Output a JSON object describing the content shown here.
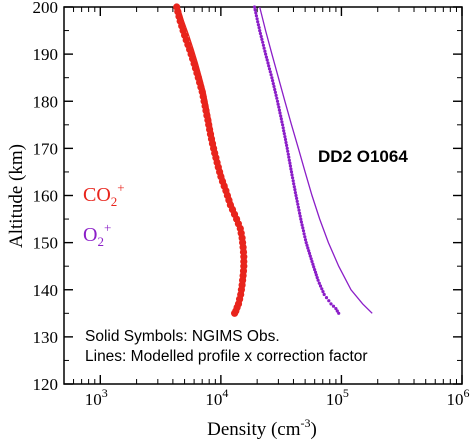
{
  "chart_data": {
    "type": "scatter",
    "x_scale": "log",
    "xlim": [
      500,
      1000000
    ],
    "ylim": [
      120,
      200
    ],
    "xlabel": "Density (cm",
    "xlabel_exp": "-3",
    "xlabel_close": ")",
    "ylabel": "Altitude (km)",
    "x_ticks": [
      {
        "value": 1000,
        "base": "10",
        "exp": "3"
      },
      {
        "value": 10000,
        "base": "10",
        "exp": "4"
      },
      {
        "value": 100000,
        "base": "10",
        "exp": "5"
      },
      {
        "value": 1000000,
        "base": "10",
        "exp": "6"
      }
    ],
    "y_ticks": [
      120,
      130,
      140,
      150,
      160,
      170,
      180,
      190,
      200
    ],
    "panel_label": "DD2 O1064",
    "annotations": [
      "Solid Symbols: NGIMS Obs.",
      "Lines: Modelled profile x correction factor"
    ],
    "series": [
      {
        "name": "CO",
        "name_sub": "2",
        "name_sup": "+",
        "color": "#e8241c",
        "obs": [
          [
            4300,
            200
          ],
          [
            4600,
            197
          ],
          [
            5000,
            194
          ],
          [
            5500,
            191
          ],
          [
            6000,
            188
          ],
          [
            6500,
            185
          ],
          [
            7000,
            182
          ],
          [
            7400,
            179
          ],
          [
            7800,
            176
          ],
          [
            8200,
            173
          ],
          [
            8700,
            170
          ],
          [
            9300,
            167
          ],
          [
            10000,
            164
          ],
          [
            11000,
            161
          ],
          [
            12000,
            158
          ],
          [
            13500,
            155
          ],
          [
            14500,
            153
          ],
          [
            15000,
            151
          ],
          [
            15300,
            149
          ],
          [
            15500,
            147
          ],
          [
            15500,
            145
          ],
          [
            15300,
            143
          ],
          [
            15000,
            141
          ],
          [
            14600,
            139
          ],
          [
            14000,
            137
          ],
          [
            13300,
            135.5
          ],
          [
            13000,
            135
          ]
        ],
        "model": [
          [
            4500,
            200
          ],
          [
            4900,
            197
          ],
          [
            5400,
            194
          ],
          [
            5900,
            191
          ],
          [
            6400,
            188
          ],
          [
            6900,
            185
          ],
          [
            7400,
            182
          ],
          [
            7800,
            179
          ],
          [
            8200,
            176
          ],
          [
            8600,
            173
          ],
          [
            9100,
            170
          ],
          [
            9700,
            167
          ],
          [
            10500,
            164
          ],
          [
            11500,
            161
          ],
          [
            12600,
            158
          ],
          [
            14000,
            155
          ],
          [
            15200,
            152
          ],
          [
            16000,
            149
          ],
          [
            16200,
            146
          ],
          [
            16000,
            143
          ],
          [
            15500,
            140
          ],
          [
            14800,
            137.5
          ],
          [
            14000,
            135.5
          ],
          [
            13500,
            135
          ]
        ]
      },
      {
        "name": "O",
        "name_sub": "2",
        "name_sup": "+",
        "color": "#8b1ec8",
        "obs": [
          [
            19000,
            200
          ],
          [
            21000,
            195
          ],
          [
            23500,
            190
          ],
          [
            26500,
            185
          ],
          [
            29500,
            180
          ],
          [
            32500,
            175
          ],
          [
            35500,
            170
          ],
          [
            38500,
            165
          ],
          [
            42000,
            160
          ],
          [
            46000,
            155
          ],
          [
            51000,
            150
          ],
          [
            57000,
            146
          ],
          [
            64000,
            142
          ],
          [
            72000,
            139
          ],
          [
            82000,
            137
          ],
          [
            90000,
            136
          ],
          [
            95000,
            135
          ]
        ],
        "model": [
          [
            21000,
            200
          ],
          [
            23500,
            195
          ],
          [
            26500,
            190
          ],
          [
            30000,
            185
          ],
          [
            34000,
            180
          ],
          [
            38500,
            175
          ],
          [
            44000,
            170
          ],
          [
            50000,
            165
          ],
          [
            57000,
            160
          ],
          [
            66000,
            155
          ],
          [
            78000,
            150
          ],
          [
            95000,
            145
          ],
          [
            120000,
            140
          ],
          [
            150000,
            137
          ],
          [
            180000,
            135
          ]
        ]
      }
    ]
  }
}
